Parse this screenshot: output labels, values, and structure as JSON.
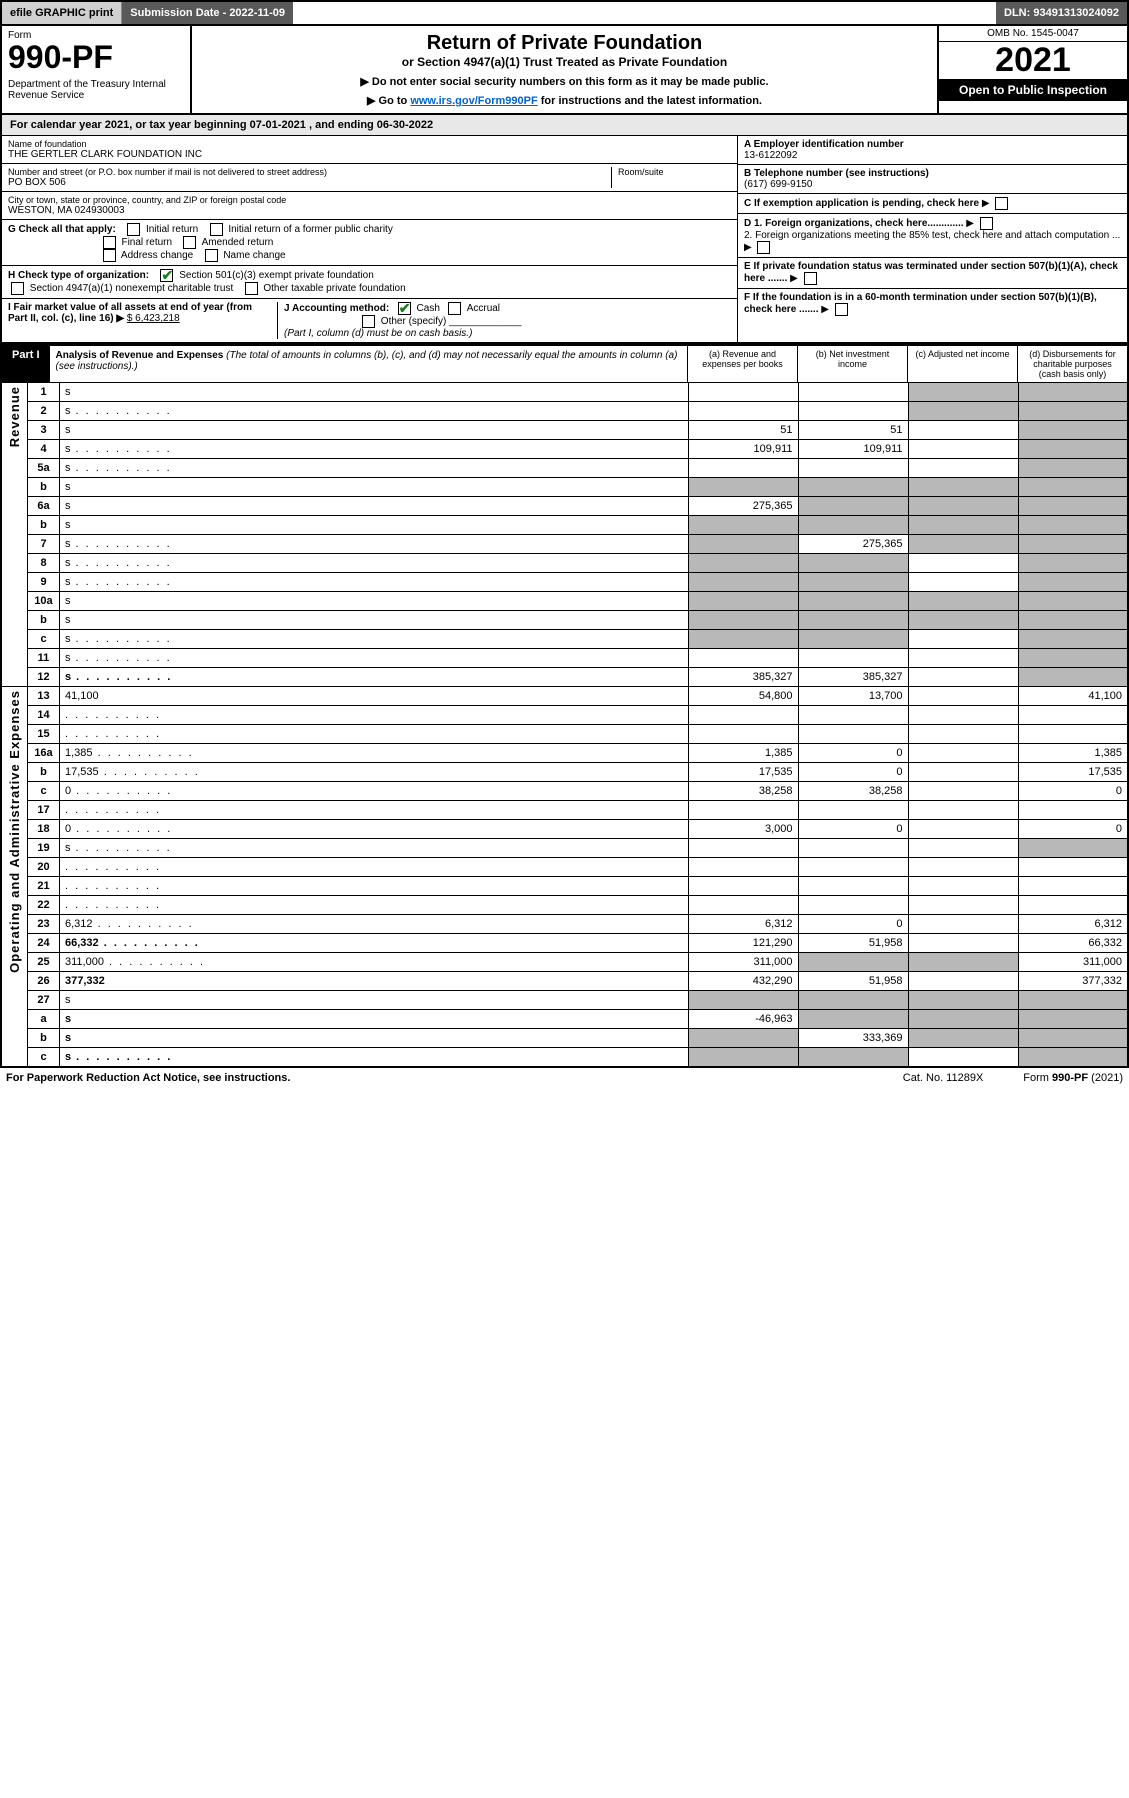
{
  "topbar": {
    "efile": "efile GRAPHIC print",
    "sub_label": "Submission Date - 2022-11-09",
    "dln": "DLN: 93491313024092"
  },
  "header": {
    "form_word": "Form",
    "form_number": "990-PF",
    "dept": "Department of the Treasury\nInternal Revenue Service",
    "title": "Return of Private Foundation",
    "subtitle": "or Section 4947(a)(1) Trust Treated as Private Foundation",
    "note1": "▶ Do not enter social security numbers on this form as it may be made public.",
    "note2_pre": "▶ Go to ",
    "note2_link": "www.irs.gov/Form990PF",
    "note2_post": " for instructions and the latest information.",
    "omb": "OMB No. 1545-0047",
    "year": "2021",
    "open": "Open to Public Inspection"
  },
  "cal": "For calendar year 2021, or tax year beginning 07-01-2021              , and ending 06-30-2022",
  "name_lbl": "Name of foundation",
  "name_val": "THE GERTLER CLARK FOUNDATION INC",
  "addr_lbl": "Number and street (or P.O. box number if mail is not delivered to street address)",
  "addr_val": "PO BOX 506",
  "room_lbl": "Room/suite",
  "city_lbl": "City or town, state or province, country, and ZIP or foreign postal code",
  "city_val": "WESTON, MA  024930003",
  "ein_lbl": "A Employer identification number",
  "ein_val": "13-6122092",
  "tel_lbl": "B Telephone number (see instructions)",
  "tel_val": "(617) 699-9150",
  "c_lbl": "C If exemption application is pending, check here",
  "d1_lbl": "D 1. Foreign organizations, check here.............",
  "d2_lbl": "2. Foreign organizations meeting the 85% test, check here and attach computation ...",
  "e_lbl": "E  If private foundation status was terminated under section 507(b)(1)(A), check here .......",
  "f_lbl": "F  If the foundation is in a 60-month termination under section 507(b)(1)(B), check here .......",
  "g_lbl": "G Check all that apply:",
  "g_opts": [
    "Initial return",
    "Initial return of a former public charity",
    "Final return",
    "Amended return",
    "Address change",
    "Name change"
  ],
  "h_lbl": "H Check type of organization:",
  "h_opts": [
    "Section 501(c)(3) exempt private foundation",
    "Section 4947(a)(1) nonexempt charitable trust",
    "Other taxable private foundation"
  ],
  "h_checked": 0,
  "i_lbl": "I Fair market value of all assets at end of year (from Part II, col. (c), line 16) ▶",
  "i_val": "$  6,423,218",
  "j_lbl": "J Accounting method:",
  "j_opts": [
    "Cash",
    "Accrual",
    "Other (specify)"
  ],
  "j_checked": 0,
  "j_note": "(Part I, column (d) must be on cash basis.)",
  "part1_label": "Part I",
  "part1_title": "Analysis of Revenue and Expenses",
  "part1_note": "(The total of amounts in columns (b), (c), and (d) may not necessarily equal the amounts in column (a) (see instructions).)",
  "cols": {
    "a": "(a)   Revenue and expenses per books",
    "b": "(b)   Net investment income",
    "c": "(c)   Adjusted net income",
    "d": "(d)   Disbursements for charitable purposes (cash basis only)"
  },
  "vlabels": {
    "rev": "Revenue",
    "exp": "Operating and Administrative Expenses"
  },
  "rows": [
    {
      "n": "1",
      "d": "s",
      "a": "",
      "b": "",
      "c": "s"
    },
    {
      "n": "2",
      "d": "s",
      "dots": 1,
      "a": "",
      "b": "",
      "c": "s"
    },
    {
      "n": "3",
      "d": "s",
      "a": "51",
      "b": "51",
      "c": ""
    },
    {
      "n": "4",
      "d": "s",
      "dots": 1,
      "a": "109,911",
      "b": "109,911",
      "c": ""
    },
    {
      "n": "5a",
      "d": "s",
      "dots": 1,
      "a": "",
      "b": "",
      "c": ""
    },
    {
      "n": "b",
      "d": "s",
      "a": "s",
      "b": "s",
      "c": "s"
    },
    {
      "n": "6a",
      "d": "s",
      "a": "275,365",
      "b": "s",
      "c": "s"
    },
    {
      "n": "b",
      "d": "s",
      "a": "s",
      "b": "s",
      "c": "s"
    },
    {
      "n": "7",
      "d": "s",
      "dots": 1,
      "a": "s",
      "b": "275,365",
      "c": "s"
    },
    {
      "n": "8",
      "d": "s",
      "dots": 1,
      "a": "s",
      "b": "s",
      "c": ""
    },
    {
      "n": "9",
      "d": "s",
      "dots": 1,
      "a": "s",
      "b": "s",
      "c": ""
    },
    {
      "n": "10a",
      "d": "s",
      "a": "s",
      "b": "s",
      "c": "s"
    },
    {
      "n": "b",
      "d": "s",
      "a": "s",
      "b": "s",
      "c": "s"
    },
    {
      "n": "c",
      "d": "s",
      "dots": 1,
      "a": "s",
      "b": "s",
      "c": ""
    },
    {
      "n": "11",
      "d": "s",
      "dots": 1,
      "a": "",
      "b": "",
      "c": ""
    },
    {
      "n": "12",
      "d": "s",
      "dots": 1,
      "bold": 1,
      "a": "385,327",
      "b": "385,327",
      "c": ""
    },
    {
      "n": "13",
      "d": "41,100",
      "a": "54,800",
      "b": "13,700",
      "c": ""
    },
    {
      "n": "14",
      "d": "",
      "dots": 1,
      "a": "",
      "b": "",
      "c": ""
    },
    {
      "n": "15",
      "d": "",
      "dots": 1,
      "a": "",
      "b": "",
      "c": ""
    },
    {
      "n": "16a",
      "d": "1,385",
      "dots": 1,
      "a": "1,385",
      "b": "0",
      "c": ""
    },
    {
      "n": "b",
      "d": "17,535",
      "dots": 1,
      "a": "17,535",
      "b": "0",
      "c": ""
    },
    {
      "n": "c",
      "d": "0",
      "dots": 1,
      "a": "38,258",
      "b": "38,258",
      "c": ""
    },
    {
      "n": "17",
      "d": "",
      "dots": 1,
      "a": "",
      "b": "",
      "c": ""
    },
    {
      "n": "18",
      "d": "0",
      "dots": 1,
      "a": "3,000",
      "b": "0",
      "c": ""
    },
    {
      "n": "19",
      "d": "s",
      "dots": 1,
      "a": "",
      "b": "",
      "c": ""
    },
    {
      "n": "20",
      "d": "",
      "dots": 1,
      "a": "",
      "b": "",
      "c": ""
    },
    {
      "n": "21",
      "d": "",
      "dots": 1,
      "a": "",
      "b": "",
      "c": ""
    },
    {
      "n": "22",
      "d": "",
      "dots": 1,
      "a": "",
      "b": "",
      "c": ""
    },
    {
      "n": "23",
      "d": "6,312",
      "dots": 1,
      "a": "6,312",
      "b": "0",
      "c": ""
    },
    {
      "n": "24",
      "d": "66,332",
      "dots": 1,
      "bold": 1,
      "a": "121,290",
      "b": "51,958",
      "c": ""
    },
    {
      "n": "25",
      "d": "311,000",
      "dots": 1,
      "a": "311,000",
      "b": "s",
      "c": "s"
    },
    {
      "n": "26",
      "d": "377,332",
      "bold": 1,
      "a": "432,290",
      "b": "51,958",
      "c": ""
    },
    {
      "n": "27",
      "d": "s",
      "a": "s",
      "b": "s",
      "c": "s"
    },
    {
      "n": "a",
      "d": "s",
      "bold": 1,
      "a": "-46,963",
      "b": "s",
      "c": "s"
    },
    {
      "n": "b",
      "d": "s",
      "bold": 1,
      "a": "s",
      "b": "333,369",
      "c": "s"
    },
    {
      "n": "c",
      "d": "s",
      "dots": 1,
      "bold": 1,
      "a": "s",
      "b": "s",
      "c": ""
    }
  ],
  "footer": {
    "left": "For Paperwork Reduction Act Notice, see instructions.",
    "mid": "Cat. No. 11289X",
    "right": "Form 990-PF (2021)"
  }
}
